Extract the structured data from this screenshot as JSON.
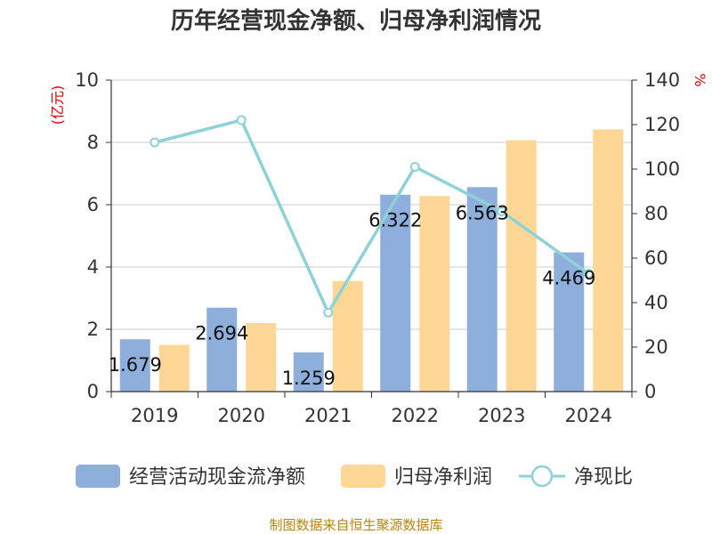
{
  "chart_data": {
    "type": "bar+line",
    "title": "历年经营现金净额、归母净利润情况",
    "categories": [
      "2019",
      "2020",
      "2021",
      "2022",
      "2023",
      "2024"
    ],
    "series": [
      {
        "name": "经营活动现金流净额",
        "type": "bar",
        "axis": "left",
        "color": "#8eaedb",
        "values": [
          1.679,
          2.694,
          1.259,
          6.322,
          6.563,
          4.469
        ],
        "labels": [
          "1.679",
          "2.694",
          "1.259",
          "6.322",
          "6.563",
          "4.469"
        ]
      },
      {
        "name": "归母净利润",
        "type": "bar",
        "axis": "left",
        "color": "#fed797",
        "values": [
          1.5,
          2.2,
          3.55,
          6.28,
          8.07,
          8.42
        ]
      },
      {
        "name": "净现比",
        "type": "line",
        "axis": "right",
        "color": "#8dd3d6",
        "values": [
          112,
          122,
          35.5,
          101,
          81,
          53
        ]
      }
    ],
    "yleft": {
      "label": "(亿元)",
      "lim": [
        0,
        10
      ],
      "ticks": [
        0,
        2,
        4,
        6,
        8,
        10
      ]
    },
    "yright": {
      "label": "%",
      "lim": [
        0,
        140
      ],
      "ticks": [
        0,
        20,
        40,
        60,
        80,
        100,
        120,
        140
      ]
    },
    "legend_position": "bottom",
    "source": "制图数据来自恒生聚源数据库"
  }
}
